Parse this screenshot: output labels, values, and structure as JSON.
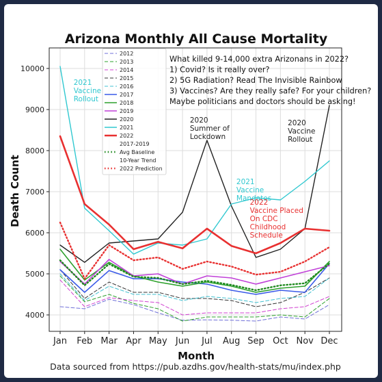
{
  "chart_data": {
    "type": "line",
    "title": "Arizona Monthly All Cause Mortality",
    "xlabel": "Month",
    "ylabel": "Death Count",
    "categories": [
      "Jan",
      "Feb",
      "Mar",
      "Apr",
      "May",
      "Jun",
      "Jul",
      "Aug",
      "Sep",
      "Oct",
      "Nov",
      "Dec"
    ],
    "ylim": [
      3600,
      10500
    ],
    "yticks": [
      4000,
      5000,
      6000,
      7000,
      8000,
      9000,
      10000
    ],
    "grid": true,
    "legend_position": "top-left",
    "source_note": "Data sourced from https://pub.azdhs.gov/health-stats/mu/index.php",
    "commentary": [
      "What killed 9-14,000 extra Arizonans in 2022?",
      "1) Covid? Is it really over?",
      "2) 5G Radiation? Read The Invisible Rainbow",
      "3) Vaccines? Are they really safe? For your children?",
      "Maybe politicians and doctors should be asking!"
    ],
    "series": [
      {
        "name": "2012",
        "color": "#6f6fd8",
        "style": "dash",
        "width": 1,
        "values": [
          4200,
          4150,
          4380,
          4250,
          4050,
          3870,
          3880,
          3870,
          3850,
          3950,
          3900,
          4250
        ]
      },
      {
        "name": "2013",
        "color": "#2ca02c",
        "style": "dash",
        "width": 1,
        "values": [
          4950,
          4320,
          4500,
          4280,
          4150,
          3850,
          3950,
          3950,
          3950,
          4000,
          3950,
          4400
        ]
      },
      {
        "name": "2014",
        "color": "#d040d0",
        "style": "dash",
        "width": 1,
        "values": [
          4850,
          4200,
          4420,
          4350,
          4300,
          4000,
          4050,
          4050,
          4050,
          4150,
          4200,
          4450
        ]
      },
      {
        "name": "2015",
        "color": "#333333",
        "style": "dash",
        "width": 1,
        "values": [
          5100,
          4400,
          4800,
          4550,
          4550,
          4400,
          4400,
          4350,
          4200,
          4300,
          4550,
          4900
        ]
      },
      {
        "name": "2016",
        "color": "#40c0d0",
        "style": "dash",
        "width": 1,
        "values": [
          5000,
          4350,
          4700,
          4500,
          4500,
          4350,
          4450,
          4400,
          4300,
          4400,
          4450,
          4900
        ]
      },
      {
        "name": "2017",
        "color": "#3a5ae8",
        "style": "solid",
        "width": 1.6,
        "values": [
          5100,
          4550,
          5080,
          4880,
          4880,
          4800,
          4750,
          4600,
          4500,
          4600,
          4550,
          5250
        ]
      },
      {
        "name": "2018",
        "color": "#2ca02c",
        "style": "solid",
        "width": 1.6,
        "values": [
          5600,
          4850,
          5280,
          4950,
          4800,
          4700,
          4800,
          4700,
          4550,
          4650,
          4700,
          5300
        ]
      },
      {
        "name": "2019",
        "color": "#c040d8",
        "style": "solid",
        "width": 1.6,
        "values": [
          5300,
          4750,
          5350,
          4950,
          5000,
          4750,
          4950,
          4900,
          4750,
          4900,
          5050,
          5200
        ]
      },
      {
        "name": "2020",
        "color": "#222222",
        "style": "solid",
        "width": 1.4,
        "values": [
          5700,
          5280,
          5750,
          5800,
          5850,
          6500,
          8250,
          6650,
          5400,
          5600,
          6100,
          9100
        ]
      },
      {
        "name": "2021",
        "color": "#30c8d0",
        "style": "solid",
        "width": 1.4,
        "values": [
          10050,
          6600,
          6050,
          5480,
          5750,
          5700,
          5850,
          6700,
          6850,
          6800,
          7250,
          7750
        ]
      },
      {
        "name": "2022",
        "color": "#e83030",
        "style": "solid",
        "width": 2.6,
        "values": [
          8350,
          6700,
          6200,
          5600,
          5780,
          5620,
          6100,
          5680,
          5500,
          5750,
          6100,
          6050
        ]
      },
      {
        "name": "2017-2019 Avg Baseline",
        "color": "#1f8a1f",
        "style": "dot",
        "width": 2.4,
        "values": [
          5330,
          4720,
          5240,
          4930,
          4900,
          4750,
          4830,
          4730,
          4600,
          4720,
          4770,
          5250
        ]
      },
      {
        "name": "10-Year Trend 2022 Prediction",
        "color": "#e83030",
        "style": "dot",
        "width": 2.4,
        "values": [
          6250,
          4880,
          5700,
          5330,
          5400,
          5120,
          5300,
          5180,
          4980,
          5050,
          5300,
          5650
        ]
      }
    ],
    "legend_entries": [
      {
        "label": "2012",
        "series": 0
      },
      {
        "label": "2013",
        "series": 1
      },
      {
        "label": "2014",
        "series": 2
      },
      {
        "label": "2015",
        "series": 3
      },
      {
        "label": "2016",
        "series": 4
      },
      {
        "label": "2017",
        "series": 5
      },
      {
        "label": "2018",
        "series": 6
      },
      {
        "label": "2019",
        "series": 7
      },
      {
        "label": "2020",
        "series": 8
      },
      {
        "label": "2021",
        "series": 9
      },
      {
        "label": "2022",
        "series": 10
      },
      {
        "label": "2017-2019",
        "series": -1
      },
      {
        "label": "Avg Baseline",
        "series": 11
      },
      {
        "label": "10-Year Trend",
        "series": -1
      },
      {
        "label": "2022 Prediction",
        "series": 12
      }
    ],
    "annotations": [
      {
        "lines": [
          "2021",
          "Vaccine",
          "Rollout"
        ],
        "color": "#30c8d0",
        "month": 0.55,
        "value": 9600
      },
      {
        "lines": [
          "2020",
          "Summer of",
          "Lockdown"
        ],
        "color": "#222222",
        "month": 5.3,
        "value": 8680
      },
      {
        "lines": [
          "2020",
          "Vaccine",
          "Rollout"
        ],
        "color": "#222222",
        "month": 9.3,
        "value": 8620
      },
      {
        "lines": [
          "2021",
          "Vaccine",
          "Mandates"
        ],
        "color": "#30c8d0",
        "month": 7.2,
        "value": 7180
      },
      {
        "lines": [
          "2022",
          "Vaccine Placed",
          "On CDC",
          "Childhood",
          "Schedule"
        ],
        "color": "#e83030",
        "month": 7.75,
        "value": 6680
      }
    ]
  }
}
